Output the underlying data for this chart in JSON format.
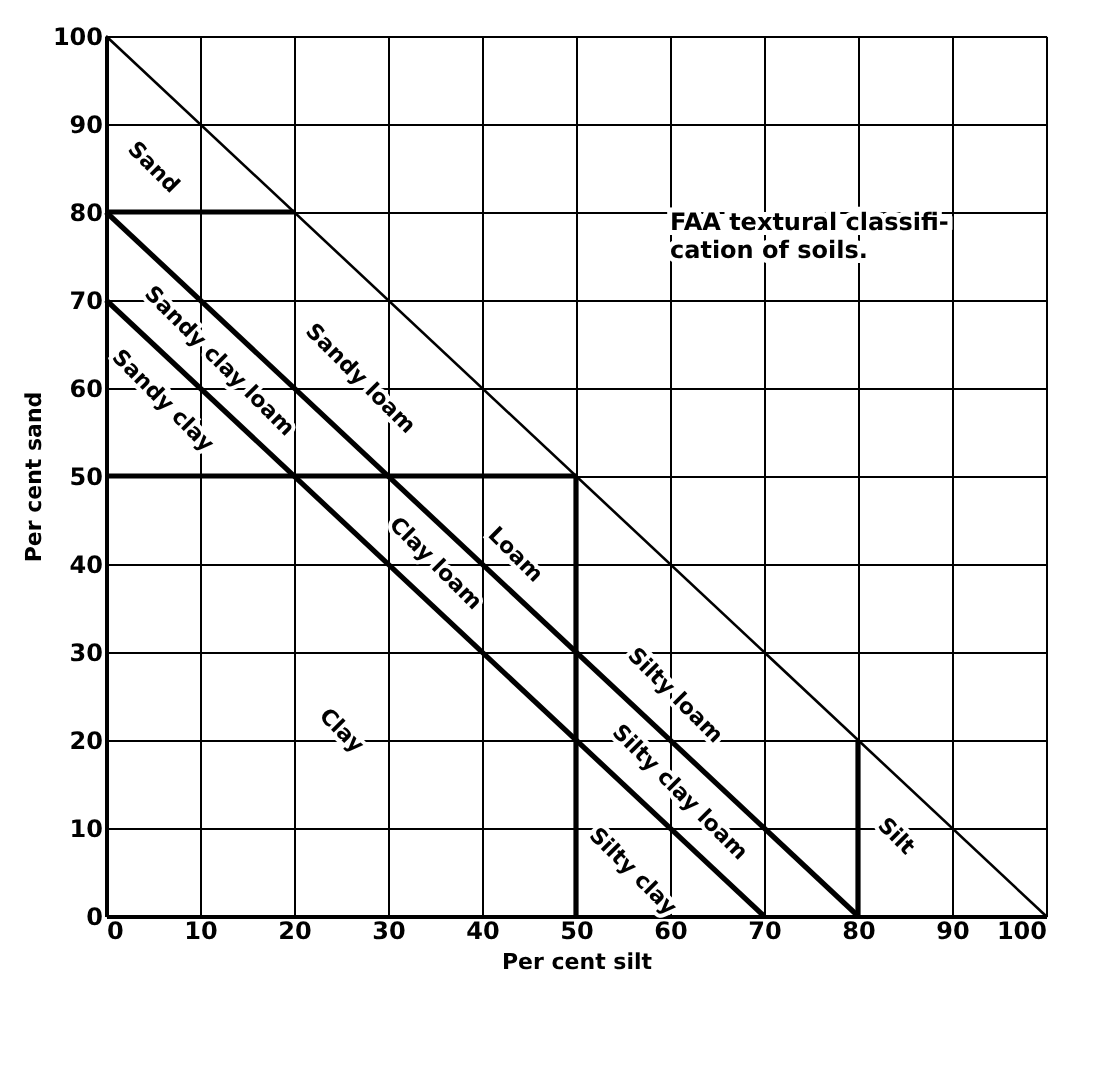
{
  "chart_data": {
    "type": "line",
    "title": "FAA textural classifi-\ncation of soils.",
    "xlabel": "Per cent silt",
    "ylabel": "Per cent sand",
    "xlim": [
      0,
      100
    ],
    "ylim": [
      0,
      100
    ],
    "xticks": [
      0,
      10,
      20,
      30,
      40,
      50,
      60,
      70,
      80,
      90,
      100
    ],
    "yticks": [
      0,
      10,
      20,
      30,
      40,
      50,
      60,
      70,
      80,
      90,
      100
    ],
    "grid": true,
    "marker": "none",
    "line_style": "solid",
    "series": [
      {
        "color": "#000000",
        "x": [
          0,
          100
        ],
        "values": [
          100,
          0
        ]
      },
      {
        "color": "#000000",
        "x": [
          0,
          20
        ],
        "values": [
          80,
          80
        ]
      },
      {
        "color": "#000000",
        "x": [
          0,
          80
        ],
        "values": [
          80,
          0
        ]
      },
      {
        "color": "#000000",
        "x": [
          0,
          70
        ],
        "values": [
          70,
          0
        ]
      },
      {
        "color": "#000000",
        "x": [
          0,
          50
        ],
        "values": [
          50,
          50
        ]
      },
      {
        "color": "#000000",
        "x": [
          50,
          50
        ],
        "values": [
          50,
          0
        ]
      },
      {
        "color": "#000000",
        "x": [
          80,
          80
        ],
        "values": [
          20,
          0
        ]
      }
    ],
    "annotations": [
      "Sand",
      "Sandy loam",
      "Sandy clay loam",
      "Sandy clay",
      "Loam",
      "Clay loam",
      "Silty loam",
      "Clay",
      "Silty clay loam",
      "Silty clay",
      "Silt"
    ]
  }
}
